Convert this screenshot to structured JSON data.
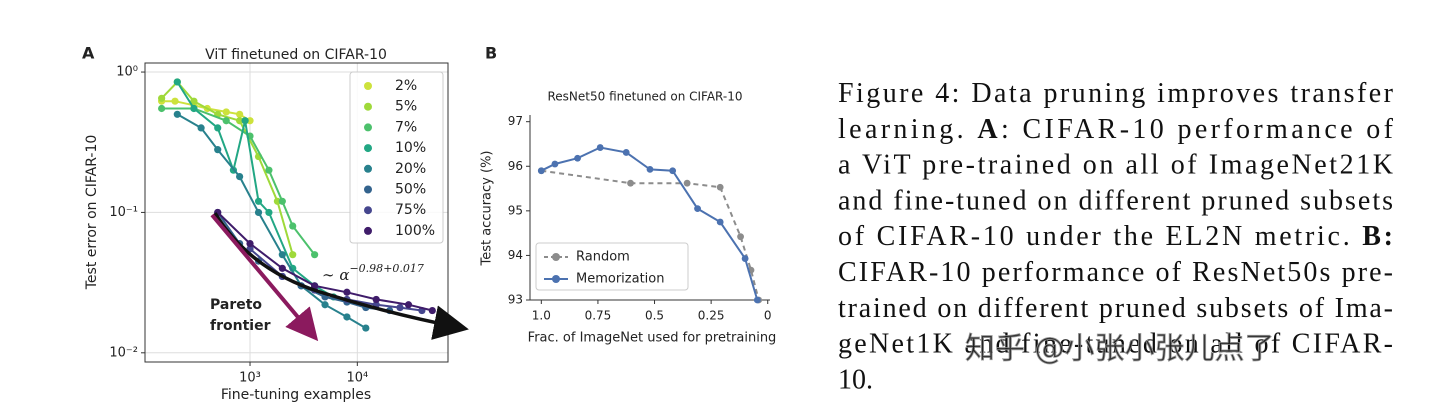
{
  "chart_data": [
    {
      "type": "line",
      "panel": "A",
      "title": "ViT finetuned on CIFAR-10",
      "xlabel": "Fine-tuning examples",
      "ylabel": "Test error on CIFAR-10",
      "xscale": "log",
      "yscale": "log",
      "grid": true,
      "legend": "upper right",
      "xlim": [
        105,
        70000
      ],
      "ylim": [
        0.0086,
        1.16
      ],
      "xticks": [
        {
          "value": 1000,
          "label": "10³"
        },
        {
          "value": 10000,
          "label": "10⁴"
        }
      ],
      "yticks": [
        {
          "value": 0.01,
          "label": "10⁻²"
        },
        {
          "value": 0.1,
          "label": "10⁻¹"
        },
        {
          "value": 1,
          "label": "10⁰"
        }
      ],
      "annotation": {
        "base": "∼ α",
        "exponent": "−0.98",
        "offset": "+0.017"
      },
      "arrow_label": [
        "Pareto",
        "frontier"
      ],
      "series": [
        {
          "name": "2%",
          "color": "#cde23c",
          "x": [
            150,
            200,
            300,
            400,
            600,
            800,
            1000
          ],
          "values": [
            0.62,
            0.62,
            0.58,
            0.55,
            0.52,
            0.5,
            0.45
          ]
        },
        {
          "name": "5%",
          "color": "#9fd93a",
          "x": [
            150,
            210,
            300,
            500,
            800,
            1200,
            1800,
            2500
          ],
          "values": [
            0.65,
            0.85,
            0.62,
            0.5,
            0.45,
            0.25,
            0.12,
            0.05
          ]
        },
        {
          "name": "7%",
          "color": "#4cc16c",
          "x": [
            150,
            300,
            600,
            1000,
            1500,
            2000,
            2500,
            4000
          ],
          "values": [
            0.55,
            0.55,
            0.45,
            0.35,
            0.2,
            0.12,
            0.08,
            0.05
          ]
        },
        {
          "name": "10%",
          "color": "#22a784",
          "x": [
            210,
            300,
            500,
            700,
            900,
            1200,
            1500,
            2500,
            4000,
            6000
          ],
          "values": [
            0.85,
            0.55,
            0.4,
            0.2,
            0.45,
            0.12,
            0.1,
            0.04,
            0.03,
            0.025
          ]
        },
        {
          "name": "20%",
          "color": "#28818d",
          "x": [
            210,
            350,
            500,
            800,
            1200,
            2000,
            3000,
            5000,
            8000,
            12000
          ],
          "values": [
            0.5,
            0.4,
            0.28,
            0.18,
            0.1,
            0.05,
            0.03,
            0.022,
            0.018,
            0.015
          ]
        },
        {
          "name": "50%",
          "color": "#33638d",
          "x": [
            500,
            800,
            1200,
            2000,
            3000,
            5000,
            8000,
            12000,
            20000
          ],
          "values": [
            0.1,
            0.06,
            0.045,
            0.035,
            0.03,
            0.025,
            0.023,
            0.021,
            0.02
          ]
        },
        {
          "name": "75%",
          "color": "#45468e",
          "x": [
            1000,
            2000,
            4000,
            8000,
            15000,
            25000,
            40000
          ],
          "values": [
            0.055,
            0.035,
            0.028,
            0.024,
            0.022,
            0.021,
            0.02
          ]
        },
        {
          "name": "100%",
          "color": "#3f1c6a",
          "x": [
            500,
            1000,
            2000,
            4000,
            8000,
            15000,
            30000,
            50000
          ],
          "values": [
            0.1,
            0.06,
            0.04,
            0.03,
            0.027,
            0.024,
            0.022,
            0.02
          ]
        }
      ]
    },
    {
      "type": "line",
      "panel": "B",
      "title": "ResNet50 finetuned on CIFAR-10",
      "xlabel": "Frac. of ImageNet used for pretraining",
      "ylabel": "Test accuracy (%)",
      "grid": false,
      "legend": "lower left",
      "xlim": [
        1.05,
        -0.01
      ],
      "ylim": [
        93,
        97.15
      ],
      "xticks": [
        {
          "value": 1,
          "label": "1.0"
        },
        0.75,
        0.5,
        0.25,
        0
      ],
      "yticks": [
        93,
        94,
        95,
        96,
        97
      ],
      "series": [
        {
          "name": "Random",
          "color": "#8c8c8c",
          "linestyle": "dashed",
          "x": [
            1.0,
            0.606,
            0.356,
            0.21,
            0.12,
            0.074,
            0.04
          ],
          "values": [
            95.9,
            95.62,
            95.62,
            95.53,
            94.42,
            93.67,
            93.0
          ]
        },
        {
          "name": "Memorization",
          "color": "#4c72b0",
          "linestyle": "solid",
          "x": [
            1.0,
            0.94,
            0.84,
            0.74,
            0.625,
            0.52,
            0.42,
            0.31,
            0.21,
            0.1,
            0.046
          ],
          "values": [
            95.9,
            96.05,
            96.18,
            96.42,
            96.31,
            95.93,
            95.9,
            95.05,
            94.75,
            93.93,
            93.0
          ]
        }
      ]
    }
  ],
  "caption": {
    "lines": [
      [
        {
          "text": "Figure 4: Data pruning improves transfer"
        }
      ],
      [
        {
          "text": "learning.  "
        },
        {
          "text": "A",
          "bold": true
        },
        {
          "text": ": CIFAR-10 performance of"
        }
      ],
      [
        {
          "text": "a ViT pre-trained on all of ImageNet21K"
        }
      ],
      [
        {
          "text": "and fine-tuned on different pruned subsets"
        }
      ],
      [
        {
          "text": "of CIFAR-10 under the EL2N metric. "
        },
        {
          "text": "B:",
          "bold": true
        }
      ],
      [
        {
          "text": "CIFAR-10 performance of ResNet50s pre-"
        }
      ],
      [
        {
          "text": "trained on different pruned subsets of Ima-"
        }
      ],
      [
        {
          "text": "geNet1K and fine-tuned on all of CIFAR-"
        }
      ],
      [
        {
          "text": "10."
        }
      ]
    ]
  },
  "watermark": "知乎 @小张小张儿点了"
}
